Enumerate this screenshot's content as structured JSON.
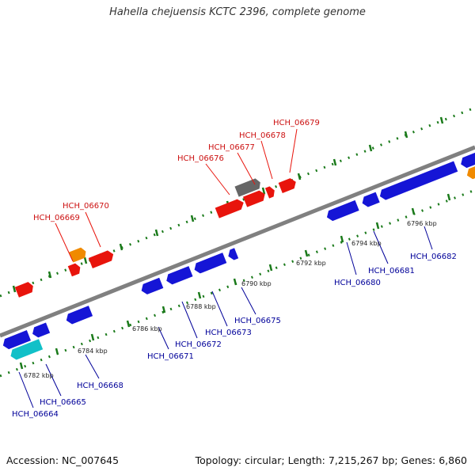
{
  "title": "Hahella chejuensis KCTC 2396, complete genome",
  "footer": {
    "accession": "Accession: NC_007645",
    "summary": "Topology: circular; Length: 7,215,267 bp; Genes: 6,860"
  },
  "colors": {
    "backbone": "#808080",
    "forward_gene": "#e8140c",
    "reverse_gene": "#1515d6",
    "forward_label": "#cc1111",
    "reverse_label": "#000099",
    "tick": "#1a7a1a",
    "orange_feature": "#f08a00",
    "cyan_feature": "#11c0c8",
    "gray_feature": "#666666"
  },
  "scale_labels": [
    "6782 kbp",
    "6784 kbp",
    "6786 kbp",
    "6788 kbp",
    "6790 kbp",
    "6792 kbp",
    "6794 kbp",
    "6796 kbp"
  ],
  "forward_genes": [
    "HCH_06669",
    "HCH_06670",
    "HCH_06676",
    "HCH_06677",
    "HCH_06678",
    "HCH_06679"
  ],
  "reverse_genes": [
    "HCH_06664",
    "HCH_06665",
    "HCH_06668",
    "HCH_06671",
    "HCH_06672",
    "HCH_06673",
    "HCH_06675",
    "HCH_06680",
    "HCH_06681",
    "HCH_06682"
  ]
}
